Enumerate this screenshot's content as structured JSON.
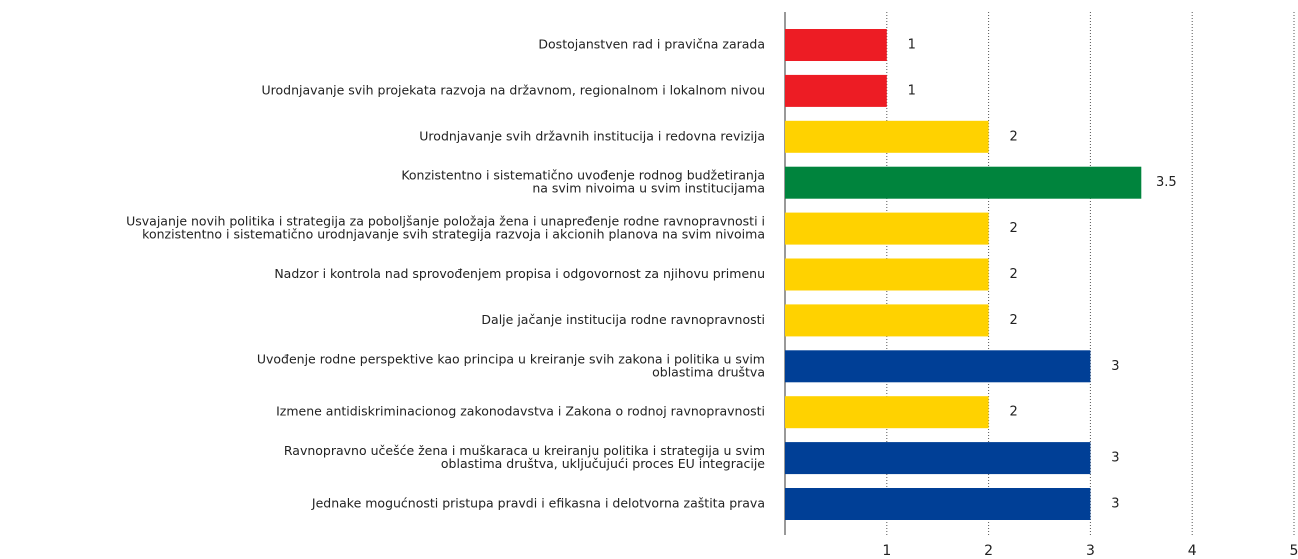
{
  "chart_data": {
    "type": "barh",
    "categories": [
      [
        "Dostojanstven rad i pravična zarada"
      ],
      [
        "Urodnjavanje svih projekata razvoja na državnom, regionalnom i lokalnom nivou"
      ],
      [
        "Urodnjavanje svih državnih institucija i redovna revizija"
      ],
      [
        "Konzistentno i sistematično uvođenje rodnog budžetiranja",
        "na svim nivoima u svim institucijama"
      ],
      [
        "Usvajanje novih politika i strategija za poboljšanje položaja žena i unapređenje rodne ravnopravnosti i",
        "konzistentno i sistematično urodnjavanje svih strategija razvoja i akcionih planova na svim nivoima"
      ],
      [
        "Nadzor i kontrola nad sprovođenjem propisa i odgovornost za njihovu primenu"
      ],
      [
        "Dalje jačanje institucija rodne ravnopravnosti"
      ],
      [
        "Uvođenje rodne perspektive kao principa u kreiranje svih zakona i politika u svim",
        "oblastima društva"
      ],
      [
        "Izmene antidiskriminacionog zakonodavstva i Zakona o rodnoj ravnopravnosti"
      ],
      [
        "Ravnopravno učešće žena i muškaraca u kreiranju politika i strategija u svim",
        "oblastima društva, uključujući proces EU integracije"
      ],
      [
        "Jednake mogućnosti pristupa pravdi i efikasna i delotvorna zaštita prava"
      ]
    ],
    "values": [
      1,
      1,
      2,
      3.5,
      2,
      2,
      2,
      3,
      2,
      3,
      3
    ],
    "colors": [
      "#ed1c24",
      "#ed1c24",
      "#ffd200",
      "#00843d",
      "#ffd200",
      "#ffd200",
      "#ffd200",
      "#003f96",
      "#ffd200",
      "#003f96",
      "#003f96"
    ],
    "xlim": [
      0,
      5
    ],
    "xticks": [
      1,
      2,
      3,
      4,
      5
    ],
    "grid": true
  }
}
